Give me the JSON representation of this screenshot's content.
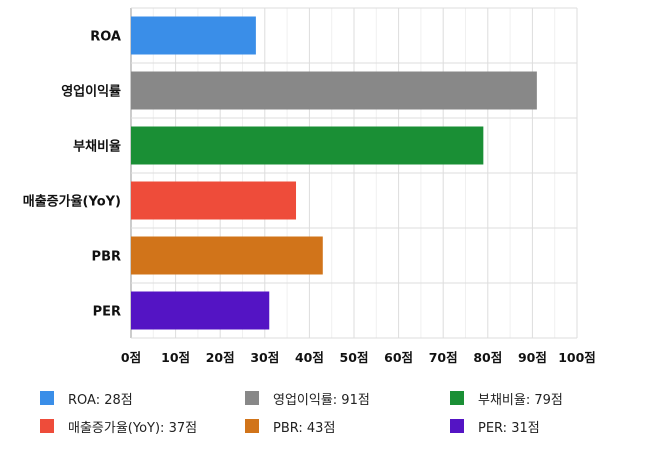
{
  "chart_data": {
    "type": "bar",
    "orientation": "horizontal",
    "categories": [
      "ROA",
      "영업이익률",
      "부채비율",
      "매출증가율(YoY)",
      "PBR",
      "PER"
    ],
    "values": [
      28,
      91,
      79,
      37,
      43,
      31
    ],
    "colors": [
      "#3a8ee8",
      "#888888",
      "#1a8f35",
      "#ee4c3a",
      "#d1741a",
      "#5414c4"
    ],
    "xlim": [
      0,
      100
    ],
    "x_ticks": [
      0,
      10,
      20,
      30,
      40,
      50,
      60,
      70,
      80,
      90,
      100
    ],
    "x_tick_labels": [
      "0점",
      "10점",
      "20점",
      "30점",
      "40점",
      "50점",
      "60점",
      "70점",
      "80점",
      "90점",
      "100점"
    ],
    "grid": true,
    "legend_position": "bottom",
    "legend": [
      "ROA: 28점",
      "영업이익률: 91점",
      "부채비율: 79점",
      "매출증가율(YoY): 37점",
      "PBR: 43점",
      "PER: 31점"
    ]
  }
}
